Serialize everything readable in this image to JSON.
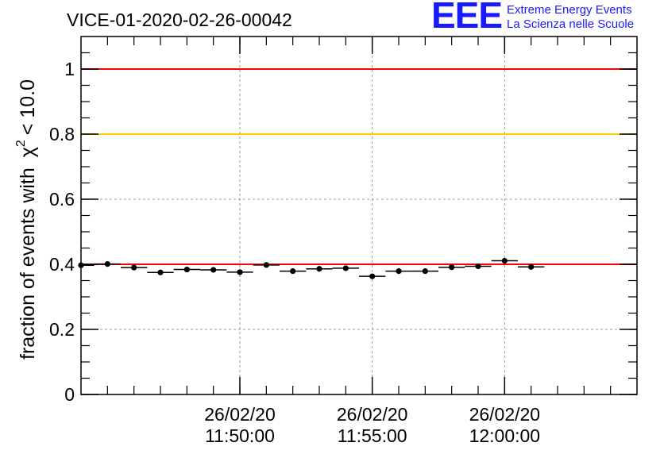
{
  "chart_data": {
    "type": "scatter",
    "title": "VICE-01-2020-02-26-00042",
    "ylabel": "fraction of events with",
    "ylabel_symbol": "χ",
    "ylabel_sup": "2",
    "ylabel_tail": "< 10.0",
    "xlabel": "",
    "ylim": [
      0,
      1.1
    ],
    "xlim": [
      "2020-02-26 11:44:00",
      "2020-02-26 12:05:00"
    ],
    "grid": true,
    "yticks": [
      {
        "value": 0,
        "label": "0"
      },
      {
        "value": 0.2,
        "label": "0.2"
      },
      {
        "value": 0.4,
        "label": "0.4"
      },
      {
        "value": 0.6,
        "label": "0.6"
      },
      {
        "value": 0.8,
        "label": "0.8"
      },
      {
        "value": 1,
        "label": "1"
      }
    ],
    "xticks": [
      {
        "time": "2020-02-26 11:50:00",
        "date_label": "26/02/20",
        "time_label": "11:50:00"
      },
      {
        "time": "2020-02-26 11:55:00",
        "date_label": "26/02/20",
        "time_label": "11:55:00"
      },
      {
        "time": "2020-02-26 12:00:00",
        "date_label": "26/02/20",
        "time_label": "12:00:00"
      }
    ],
    "bin_width_s": 60,
    "points": [
      {
        "t": "2020-02-26 11:44:00",
        "y": 0.397
      },
      {
        "t": "2020-02-26 11:45:00",
        "y": 0.401
      },
      {
        "t": "2020-02-26 11:46:00",
        "y": 0.39
      },
      {
        "t": "2020-02-26 11:47:00",
        "y": 0.375
      },
      {
        "t": "2020-02-26 11:48:00",
        "y": 0.384
      },
      {
        "t": "2020-02-26 11:49:00",
        "y": 0.383
      },
      {
        "t": "2020-02-26 11:50:00",
        "y": 0.376
      },
      {
        "t": "2020-02-26 11:51:00",
        "y": 0.398
      },
      {
        "t": "2020-02-26 11:52:00",
        "y": 0.379
      },
      {
        "t": "2020-02-26 11:53:00",
        "y": 0.386
      },
      {
        "t": "2020-02-26 11:54:00",
        "y": 0.388
      },
      {
        "t": "2020-02-26 11:55:00",
        "y": 0.363
      },
      {
        "t": "2020-02-26 11:56:00",
        "y": 0.379
      },
      {
        "t": "2020-02-26 11:57:00",
        "y": 0.379
      },
      {
        "t": "2020-02-26 11:58:00",
        "y": 0.391
      },
      {
        "t": "2020-02-26 11:59:00",
        "y": 0.394
      },
      {
        "t": "2020-02-26 12:00:00",
        "y": 0.411
      },
      {
        "t": "2020-02-26 12:01:00",
        "y": 0.392
      }
    ],
    "reference_lines": [
      {
        "y": 1.0,
        "color": "#ff0000"
      },
      {
        "y": 0.8,
        "color": "#ffcc00"
      },
      {
        "y": 0.4,
        "color": "#ff0000"
      }
    ],
    "marker_color": "#000000"
  },
  "logo": {
    "mark": "EEE",
    "line1": "Extreme Energy Events",
    "line2": "La Scienza nelle Scuole",
    "color": "#1a1aff"
  }
}
